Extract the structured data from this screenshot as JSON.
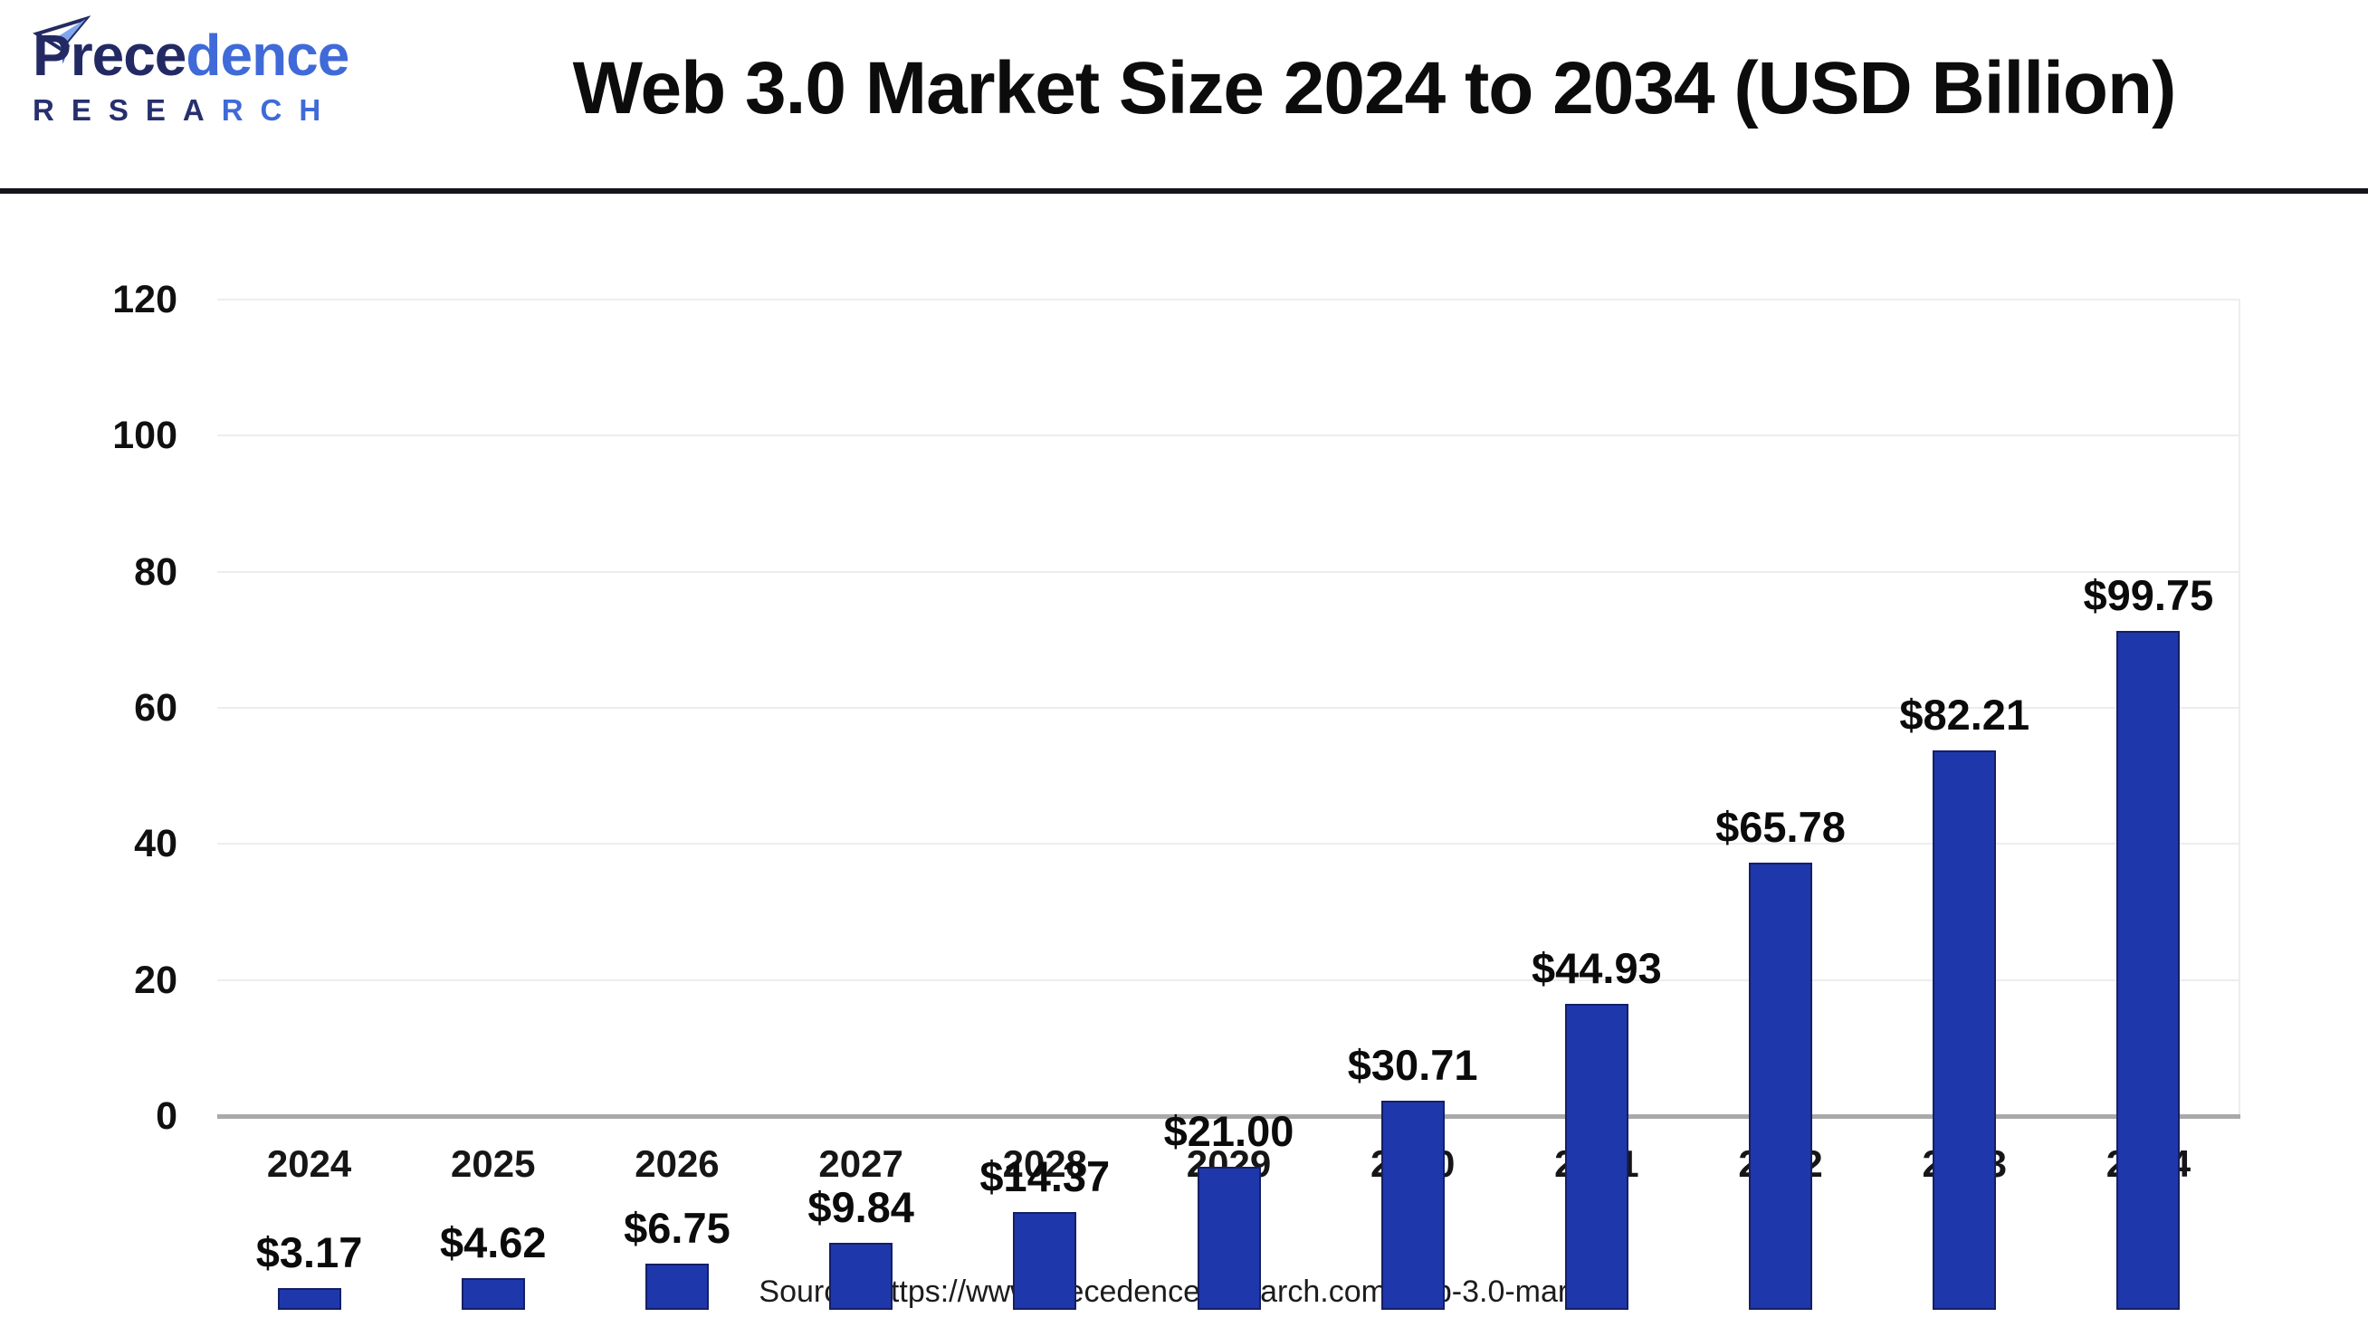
{
  "header": {
    "logo": {
      "word_dark": "Prece",
      "word_blue": "dence",
      "sub_dark": "RESEA",
      "sub_blue": "RCH",
      "navy_color": "#232a63",
      "blue_color": "#3f6ad8",
      "plane_color": "#7fa7ee"
    },
    "title": "Web 3.0 Market Size 2024 to 2034 (USD Billion)"
  },
  "chart_data": {
    "type": "bar",
    "title": "Web 3.0 Market Size 2024 to 2034 (USD Billion)",
    "categories": [
      "2024",
      "2025",
      "2026",
      "2027",
      "2028",
      "2029",
      "2030",
      "2031",
      "2032",
      "2033",
      "2034"
    ],
    "values": [
      3.17,
      4.62,
      6.75,
      9.84,
      14.37,
      21.0,
      30.71,
      44.93,
      65.78,
      82.21,
      99.75
    ],
    "value_labels": [
      "$3.17",
      "$4.62",
      "$6.75",
      "$9.84",
      "$14.37",
      "$21.00",
      "$30.71",
      "$44.93",
      "$65.78",
      "$82.21",
      "$99.75"
    ],
    "xlabel": "",
    "ylabel": "",
    "ylim": [
      0,
      120
    ],
    "yticks": [
      0,
      20,
      40,
      60,
      80,
      100,
      120
    ],
    "grid": "horizontal",
    "legend_position": "none",
    "bar_color": "#1e38ab",
    "bar_border_color": "#151f66",
    "gridline_color": "#ededed",
    "baseline_color": "#a9a9a9"
  },
  "footer": {
    "source": "Source: https://www.precedenceresearch.com/web-3.0-market"
  }
}
